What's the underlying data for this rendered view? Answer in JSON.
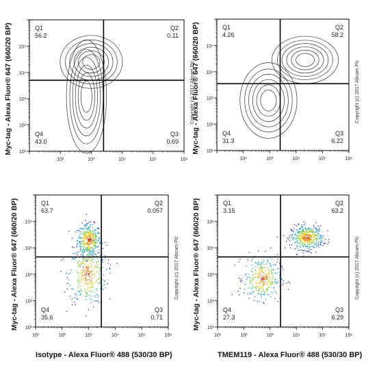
{
  "chart_data": [
    {
      "type": "contour",
      "ylabel": "Myc-tag - Alexa Fluor® 647 (660/20 BP)",
      "xlabel": "",
      "copyright": "Copyright (c) 2017 Abcam Plc",
      "x_scale": "log",
      "y_scale": "log",
      "xlim": [
        10,
        1000000
      ],
      "ylim": [
        10,
        1000000
      ],
      "x_ticks": [
        "10²",
        "10³",
        "10⁴",
        "10⁵",
        "10⁶"
      ],
      "y_ticks": [
        "10¹",
        "10²",
        "10³",
        "10⁴",
        "10⁵"
      ],
      "gate": {
        "x": 2500,
        "y": 5000
      },
      "quadrants": [
        {
          "name": "Q1",
          "value": "56.2"
        },
        {
          "name": "Q2",
          "value": "0.11"
        },
        {
          "name": "Q3",
          "value": "0.69"
        },
        {
          "name": "Q4",
          "value": "43.0"
        }
      ],
      "populations": [
        {
          "x": 1000,
          "y": 25000,
          "sx": 0.28,
          "sy": 0.28
        },
        {
          "x": 700,
          "y": 1200,
          "sx": 0.18,
          "sy": 0.6
        }
      ]
    },
    {
      "type": "contour",
      "ylabel": "Myc-tag - Alexa Fluor® 647 (660/20 BP)",
      "xlabel": "",
      "copyright": "Copyright (c) 2017 Abcam Plc",
      "x_scale": "log",
      "y_scale": "log",
      "xlim": [
        10,
        1000000
      ],
      "ylim": [
        10,
        1000000
      ],
      "x_ticks": [
        "10²",
        "10³",
        "10⁴",
        "10⁵",
        "10⁶"
      ],
      "y_ticks": [
        "10¹",
        "10²",
        "10³",
        "10⁴",
        "10⁵"
      ],
      "gate": {
        "x": 2500,
        "y": 3500
      },
      "quadrants": [
        {
          "name": "Q1",
          "value": "4.26"
        },
        {
          "name": "Q2",
          "value": "58.2"
        },
        {
          "name": "Q3",
          "value": "6.22"
        },
        {
          "name": "Q4",
          "value": "31.3"
        }
      ],
      "populations": [
        {
          "x": 22000,
          "y": 28000,
          "sx": 0.35,
          "sy": 0.25
        },
        {
          "x": 900,
          "y": 800,
          "sx": 0.3,
          "sy": 0.4
        }
      ]
    },
    {
      "type": "scatter",
      "ylabel": "Myc-tag - Alexa Fluor® 647 (660/20 BP)",
      "xlabel": "Isotype - Alexa Fluor® 488 (530/30 BP)",
      "copyright": "Copyright (c) 2017 Abcam Plc",
      "x_scale": "log",
      "y_scale": "log",
      "xlim": [
        10,
        1000000
      ],
      "ylim": [
        10,
        1000000
      ],
      "x_ticks": [
        "10¹",
        "10²",
        "10³",
        "10⁴",
        "10⁵",
        "10⁶"
      ],
      "y_ticks": [
        "10¹",
        "10²",
        "10³",
        "10⁴",
        "10⁵"
      ],
      "gate": {
        "x": 3000,
        "y": 4500
      },
      "quadrants": [
        {
          "name": "Q1",
          "value": "63.7"
        },
        {
          "name": "Q2",
          "value": "0.057"
        },
        {
          "name": "Q3",
          "value": "0.71"
        },
        {
          "name": "Q4",
          "value": "35.6"
        }
      ],
      "populations": [
        {
          "x": 1000,
          "y": 20000,
          "sx": 0.22,
          "sy": 0.3,
          "n": 420
        },
        {
          "x": 900,
          "y": 1000,
          "sx": 0.35,
          "sy": 0.55,
          "n": 380
        }
      ]
    },
    {
      "type": "scatter",
      "ylabel": "Myc-tag - Alexa Fluor® 647 (660/20 BP)",
      "xlabel": "TMEM119 - Alexa Fluor® 488 (530/30 BP)",
      "copyright": "Copyright (c) 2017 Abcam Plc",
      "x_scale": "log",
      "y_scale": "log",
      "xlim": [
        10,
        1000000
      ],
      "ylim": [
        10,
        1000000
      ],
      "x_ticks": [
        "10¹",
        "10²",
        "10³",
        "10⁴",
        "10⁵",
        "10⁶"
      ],
      "y_ticks": [
        "10¹",
        "10²",
        "10³",
        "10⁴",
        "10⁵"
      ],
      "gate": {
        "x": 2500,
        "y": 4500
      },
      "quadrants": [
        {
          "name": "Q1",
          "value": "3.15"
        },
        {
          "name": "Q2",
          "value": "63.2"
        },
        {
          "name": "Q3",
          "value": "6.29"
        },
        {
          "name": "Q4",
          "value": "27.3"
        }
      ],
      "populations": [
        {
          "x": 25000,
          "y": 25000,
          "sx": 0.3,
          "sy": 0.22,
          "n": 480
        },
        {
          "x": 500,
          "y": 700,
          "sx": 0.35,
          "sy": 0.4,
          "n": 360
        }
      ]
    }
  ]
}
